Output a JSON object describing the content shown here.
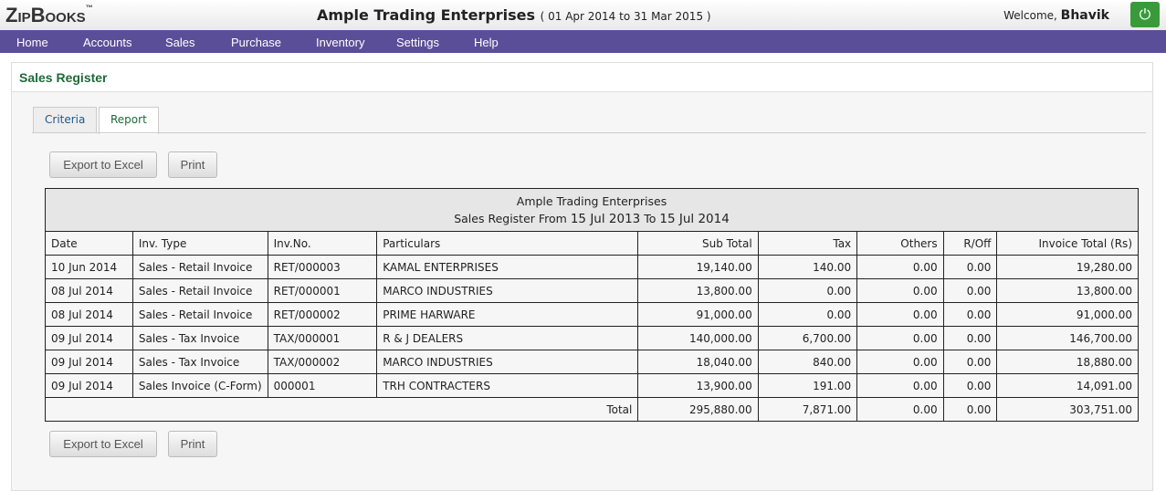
{
  "header": {
    "logo": "ZipBooks",
    "logo_mark": "™",
    "company": "Ample Trading Enterprises",
    "period": "( 01 Apr 2014 to 31 Mar 2015 )",
    "welcome": "Welcome,",
    "user": "Bhavik"
  },
  "nav": [
    "Home",
    "Accounts",
    "Sales",
    "Purchase",
    "Inventory",
    "Settings",
    "Help"
  ],
  "page_title": "Sales Register",
  "tabs": [
    "Criteria",
    "Report"
  ],
  "buttons": [
    "Export to Excel",
    "Print"
  ],
  "report": {
    "company": "Ample Trading Enterprises",
    "prefix": "Sales Register From",
    "from": "15 Jul 2013",
    "to_word": "To",
    "to": "15 Jul 2014"
  },
  "table": {
    "columns": [
      "Date",
      "Inv. Type",
      "Inv.No.",
      "Particulars",
      "Sub Total",
      "Tax",
      "Others",
      "R/Off",
      "Invoice Total (Rs)"
    ],
    "rows": [
      [
        "10 Jun 2014",
        "Sales - Retail Invoice",
        "RET/000003",
        "KAMAL ENTERPRISES",
        "19,140.00",
        "140.00",
        "0.00",
        "0.00",
        "19,280.00"
      ],
      [
        "08 Jul 2014",
        "Sales - Retail Invoice",
        "RET/000001",
        "MARCO INDUSTRIES",
        "13,800.00",
        "0.00",
        "0.00",
        "0.00",
        "13,800.00"
      ],
      [
        "08 Jul 2014",
        "Sales - Retail Invoice",
        "RET/000002",
        "PRIME HARWARE",
        "91,000.00",
        "0.00",
        "0.00",
        "0.00",
        "91,000.00"
      ],
      [
        "09 Jul 2014",
        "Sales - Tax Invoice",
        "TAX/000001",
        "R & J DEALERS",
        "140,000.00",
        "6,700.00",
        "0.00",
        "0.00",
        "146,700.00"
      ],
      [
        "09 Jul 2014",
        "Sales - Tax Invoice",
        "TAX/000002",
        "MARCO INDUSTRIES",
        "18,040.00",
        "840.00",
        "0.00",
        "0.00",
        "18,880.00"
      ],
      [
        "09 Jul 2014",
        "Sales Invoice (C-Form)",
        "000001",
        "TRH CONTRACTERS",
        "13,900.00",
        "191.00",
        "0.00",
        "0.00",
        "14,091.00"
      ]
    ],
    "total": {
      "label": "Total",
      "values": [
        "295,880.00",
        "7,871.00",
        "0.00",
        "0.00",
        "303,751.00"
      ]
    }
  }
}
